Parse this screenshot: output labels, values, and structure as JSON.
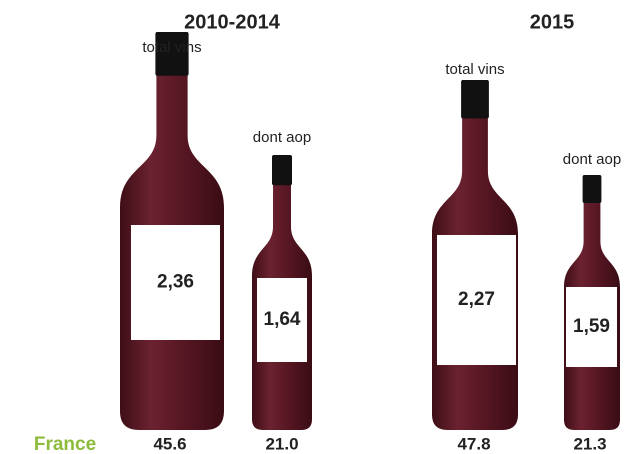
{
  "row_label": "France",
  "groups": [
    {
      "title": "2010-2014",
      "bottles": [
        {
          "label": "total vins",
          "value": "2,36",
          "bottom": "45.6"
        },
        {
          "label": "dont aop",
          "value": "1,64",
          "bottom": "21.0"
        }
      ]
    },
    {
      "title": "2015",
      "bottles": [
        {
          "label": "total vins",
          "value": "2,27",
          "bottom": "47.8"
        },
        {
          "label": "dont aop",
          "value": "1,59",
          "bottom": "21.3"
        }
      ]
    }
  ]
}
